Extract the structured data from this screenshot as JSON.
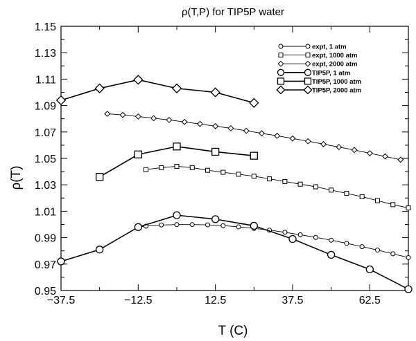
{
  "chart_data": {
    "type": "line",
    "title": "ρ(T,P) for TIP5P water",
    "xlabel": "T (C)",
    "ylabel": "ρ(T)",
    "xlim": [
      -37.5,
      75
    ],
    "ylim": [
      0.95,
      1.15
    ],
    "xticks": [
      -37.5,
      -12.5,
      12.5,
      37.5,
      62.5
    ],
    "xtick_labels": [
      "−37.5",
      "−12.5",
      "12.5",
      "37.5",
      "62.5"
    ],
    "yticks": [
      0.95,
      0.97,
      0.99,
      1.01,
      1.03,
      1.05,
      1.07,
      1.09,
      1.11,
      1.13,
      1.15
    ],
    "ytick_labels": [
      "0.95",
      "0.97",
      "0.99",
      "1.01",
      "1.03",
      "1.05",
      "1.07",
      "1.09",
      "1.11",
      "1.13",
      "1.15"
    ],
    "grid": false,
    "legend_position": "top-right",
    "series": [
      {
        "name": "expt, 1 atm",
        "marker": "circle",
        "size": "small",
        "x": [
          -12.5,
          -10,
          -5,
          0,
          5,
          10,
          15,
          20,
          25,
          30,
          35,
          40,
          45,
          50,
          55,
          60,
          65,
          70,
          75
        ],
        "y": [
          0.998,
          0.9987,
          0.9996,
          0.9999,
          0.9999,
          0.9997,
          0.9991,
          0.9982,
          0.997,
          0.9957,
          0.9941,
          0.9922,
          0.9902,
          0.9881,
          0.9857,
          0.9832,
          0.9806,
          0.9778,
          0.9749
        ]
      },
      {
        "name": "expt, 1000 atm",
        "marker": "square",
        "size": "small",
        "x": [
          -10,
          -5,
          0,
          5,
          10,
          15,
          20,
          25,
          30,
          35,
          40,
          45,
          50,
          55,
          60,
          65,
          70,
          75
        ],
        "y": [
          1.0415,
          1.043,
          1.044,
          1.043,
          1.041,
          1.0395,
          1.038,
          1.0365,
          1.0345,
          1.0325,
          1.0305,
          1.0285,
          1.026,
          1.0235,
          1.021,
          1.018,
          1.015,
          1.0125
        ]
      },
      {
        "name": "expt, 2000 atm",
        "marker": "diamond",
        "size": "small",
        "x": [
          -22.5,
          -17.5,
          -12.5,
          -7.5,
          -2.5,
          2.5,
          7.5,
          12.5,
          17.5,
          22.5,
          27.5,
          32.5,
          37.5,
          42.5,
          47.5,
          52.5,
          57.5,
          62.5,
          67.5,
          72.5
        ],
        "y": [
          1.0838,
          1.0829,
          1.0817,
          1.0804,
          1.0791,
          1.0776,
          1.0761,
          1.0744,
          1.0728,
          1.0709,
          1.069,
          1.0671,
          1.0651,
          1.063,
          1.0608,
          1.0586,
          1.0563,
          1.0539,
          1.0515,
          1.049
        ]
      },
      {
        "name": "TIP5P, 1 atm",
        "marker": "circle",
        "size": "large",
        "x": [
          -37.5,
          -25,
          -12.5,
          0,
          12.5,
          25,
          37.5,
          50,
          62.5,
          75
        ],
        "y": [
          0.972,
          0.981,
          0.998,
          1.007,
          1.004,
          0.999,
          0.989,
          0.977,
          0.966,
          0.951
        ]
      },
      {
        "name": "TIP5P, 1000 atm",
        "marker": "square",
        "size": "large",
        "x": [
          -25,
          -12.5,
          0,
          12.5,
          25
        ],
        "y": [
          1.036,
          1.053,
          1.059,
          1.055,
          1.052
        ]
      },
      {
        "name": "TIP5P, 2000 atm",
        "marker": "diamond",
        "size": "large",
        "x": [
          -37.5,
          -25,
          -12.5,
          0,
          12.5,
          25
        ],
        "y": [
          1.094,
          1.103,
          1.1095,
          1.103,
          1.1,
          1.092
        ]
      }
    ]
  }
}
